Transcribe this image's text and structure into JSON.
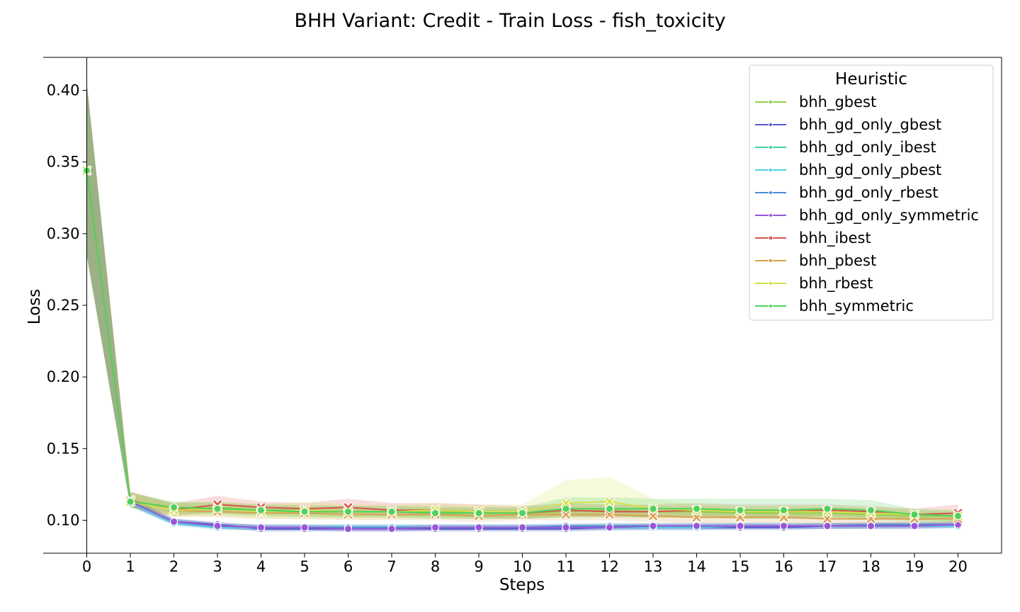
{
  "chart_data": {
    "type": "line",
    "title": "BHH Variant: Credit - Train Loss - fish_toxicity",
    "xlabel": "Steps",
    "ylabel": "Loss",
    "xlim": [
      -1,
      21
    ],
    "ylim": [
      0.077,
      0.423
    ],
    "x": [
      0,
      1,
      2,
      3,
      4,
      5,
      6,
      7,
      8,
      9,
      10,
      11,
      12,
      13,
      14,
      15,
      16,
      17,
      18,
      19,
      20
    ],
    "x_ticks": [
      "0",
      "1",
      "2",
      "3",
      "4",
      "5",
      "6",
      "7",
      "8",
      "9",
      "10",
      "11",
      "12",
      "13",
      "14",
      "15",
      "16",
      "17",
      "18",
      "19",
      "20"
    ],
    "y_ticks": [
      {
        "value": 0.1,
        "label": "0.10"
      },
      {
        "value": 0.15,
        "label": "0.15"
      },
      {
        "value": 0.2,
        "label": "0.20"
      },
      {
        "value": 0.25,
        "label": "0.25"
      },
      {
        "value": 0.3,
        "label": "0.30"
      },
      {
        "value": 0.35,
        "label": "0.35"
      },
      {
        "value": 0.4,
        "label": "0.40"
      }
    ],
    "grid": false,
    "legend": {
      "title": "Heuristic",
      "placement": "top-right"
    },
    "series": [
      {
        "name": "bhh_gbest",
        "color": "#8fd14f",
        "marker": "square",
        "values": [
          0.344,
          0.113,
          0.107,
          0.109,
          0.107,
          0.107,
          0.106,
          0.106,
          0.106,
          0.105,
          0.105,
          0.106,
          0.107,
          0.106,
          0.106,
          0.105,
          0.105,
          0.105,
          0.104,
          0.103,
          0.103
        ],
        "upper": [
          0.405,
          0.119,
          0.112,
          0.113,
          0.111,
          0.111,
          0.11,
          0.11,
          0.11,
          0.109,
          0.109,
          0.111,
          0.111,
          0.11,
          0.11,
          0.109,
          0.109,
          0.109,
          0.108,
          0.107,
          0.106
        ],
        "lower": [
          0.285,
          0.109,
          0.103,
          0.105,
          0.103,
          0.103,
          0.102,
          0.102,
          0.102,
          0.101,
          0.101,
          0.102,
          0.103,
          0.102,
          0.102,
          0.101,
          0.101,
          0.101,
          0.1,
          0.099,
          0.099
        ]
      },
      {
        "name": "bhh_gd_only_gbest",
        "color": "#5a55cc",
        "marker": "circle",
        "values": [
          0.344,
          0.113,
          0.099,
          0.097,
          0.094,
          0.094,
          0.094,
          0.094,
          0.094,
          0.094,
          0.094,
          0.094,
          0.095,
          0.095,
          0.095,
          0.095,
          0.095,
          0.096,
          0.096,
          0.096,
          0.097
        ],
        "upper": [
          0.405,
          0.116,
          0.101,
          0.099,
          0.096,
          0.096,
          0.096,
          0.096,
          0.096,
          0.096,
          0.096,
          0.096,
          0.097,
          0.097,
          0.097,
          0.097,
          0.097,
          0.098,
          0.098,
          0.098,
          0.099
        ],
        "lower": [
          0.285,
          0.11,
          0.097,
          0.095,
          0.092,
          0.092,
          0.092,
          0.092,
          0.092,
          0.092,
          0.092,
          0.092,
          0.093,
          0.093,
          0.093,
          0.093,
          0.093,
          0.094,
          0.094,
          0.094,
          0.095
        ]
      },
      {
        "name": "bhh_gd_only_ibest",
        "color": "#3dd19c",
        "marker": "circle",
        "values": [
          0.344,
          0.113,
          0.099,
          0.096,
          0.095,
          0.095,
          0.095,
          0.095,
          0.095,
          0.095,
          0.095,
          0.095,
          0.096,
          0.096,
          0.096,
          0.096,
          0.096,
          0.096,
          0.096,
          0.097,
          0.097
        ],
        "upper": [
          0.405,
          0.116,
          0.101,
          0.098,
          0.097,
          0.097,
          0.097,
          0.097,
          0.097,
          0.097,
          0.097,
          0.097,
          0.098,
          0.098,
          0.098,
          0.098,
          0.098,
          0.098,
          0.098,
          0.099,
          0.099
        ],
        "lower": [
          0.285,
          0.11,
          0.097,
          0.094,
          0.093,
          0.093,
          0.093,
          0.093,
          0.093,
          0.093,
          0.093,
          0.093,
          0.094,
          0.094,
          0.094,
          0.094,
          0.094,
          0.094,
          0.094,
          0.095,
          0.095
        ]
      },
      {
        "name": "bhh_gd_only_pbest",
        "color": "#4dd0e1",
        "marker": "circle",
        "values": [
          0.344,
          0.112,
          0.098,
          0.095,
          0.095,
          0.095,
          0.095,
          0.095,
          0.095,
          0.095,
          0.095,
          0.095,
          0.095,
          0.095,
          0.095,
          0.096,
          0.096,
          0.096,
          0.096,
          0.096,
          0.096
        ],
        "upper": [
          0.405,
          0.115,
          0.1,
          0.097,
          0.097,
          0.097,
          0.097,
          0.097,
          0.097,
          0.097,
          0.097,
          0.097,
          0.097,
          0.097,
          0.097,
          0.098,
          0.098,
          0.098,
          0.098,
          0.098,
          0.098
        ],
        "lower": [
          0.285,
          0.109,
          0.096,
          0.093,
          0.093,
          0.093,
          0.093,
          0.093,
          0.093,
          0.093,
          0.093,
          0.093,
          0.093,
          0.093,
          0.093,
          0.094,
          0.094,
          0.094,
          0.094,
          0.094,
          0.094
        ]
      },
      {
        "name": "bhh_gd_only_rbest",
        "color": "#4a8fd4",
        "marker": "circle",
        "values": [
          0.344,
          0.113,
          0.099,
          0.096,
          0.095,
          0.095,
          0.095,
          0.095,
          0.095,
          0.095,
          0.095,
          0.096,
          0.096,
          0.096,
          0.096,
          0.096,
          0.096,
          0.096,
          0.097,
          0.097,
          0.097
        ],
        "upper": [
          0.405,
          0.116,
          0.101,
          0.098,
          0.097,
          0.097,
          0.097,
          0.097,
          0.097,
          0.097,
          0.097,
          0.098,
          0.098,
          0.098,
          0.098,
          0.098,
          0.098,
          0.098,
          0.099,
          0.099,
          0.099
        ],
        "lower": [
          0.285,
          0.11,
          0.097,
          0.094,
          0.093,
          0.093,
          0.093,
          0.093,
          0.093,
          0.093,
          0.093,
          0.094,
          0.094,
          0.094,
          0.094,
          0.094,
          0.094,
          0.094,
          0.095,
          0.095,
          0.095
        ]
      },
      {
        "name": "bhh_gd_only_symmetric",
        "color": "#9a55d9",
        "marker": "circle",
        "values": [
          0.344,
          0.113,
          0.099,
          0.096,
          0.095,
          0.095,
          0.094,
          0.094,
          0.095,
          0.095,
          0.095,
          0.095,
          0.095,
          0.096,
          0.096,
          0.096,
          0.096,
          0.096,
          0.096,
          0.096,
          0.097
        ],
        "upper": [
          0.405,
          0.116,
          0.101,
          0.098,
          0.097,
          0.097,
          0.096,
          0.096,
          0.097,
          0.097,
          0.097,
          0.097,
          0.097,
          0.098,
          0.098,
          0.098,
          0.098,
          0.098,
          0.098,
          0.098,
          0.099
        ],
        "lower": [
          0.285,
          0.11,
          0.097,
          0.094,
          0.093,
          0.093,
          0.092,
          0.092,
          0.093,
          0.093,
          0.093,
          0.093,
          0.093,
          0.094,
          0.094,
          0.094,
          0.094,
          0.094,
          0.094,
          0.094,
          0.095
        ]
      },
      {
        "name": "bhh_ibest",
        "color": "#d9534f",
        "marker": "x",
        "values": [
          0.344,
          0.114,
          0.107,
          0.111,
          0.109,
          0.108,
          0.109,
          0.107,
          0.107,
          0.106,
          0.105,
          0.107,
          0.106,
          0.106,
          0.107,
          0.106,
          0.106,
          0.107,
          0.106,
          0.104,
          0.105
        ],
        "upper": [
          0.405,
          0.12,
          0.112,
          0.117,
          0.113,
          0.112,
          0.115,
          0.112,
          0.112,
          0.111,
          0.11,
          0.112,
          0.111,
          0.111,
          0.112,
          0.111,
          0.111,
          0.111,
          0.11,
          0.108,
          0.111
        ],
        "lower": [
          0.285,
          0.109,
          0.103,
          0.106,
          0.105,
          0.104,
          0.104,
          0.103,
          0.103,
          0.102,
          0.101,
          0.103,
          0.102,
          0.102,
          0.103,
          0.102,
          0.102,
          0.103,
          0.102,
          0.1,
          0.101
        ]
      },
      {
        "name": "bhh_pbest",
        "color": "#d9a04f",
        "marker": "x",
        "values": [
          0.344,
          0.114,
          0.107,
          0.106,
          0.105,
          0.105,
          0.104,
          0.104,
          0.104,
          0.103,
          0.104,
          0.104,
          0.104,
          0.103,
          0.102,
          0.102,
          0.102,
          0.101,
          0.101,
          0.101,
          0.101
        ],
        "upper": [
          0.405,
          0.12,
          0.111,
          0.11,
          0.109,
          0.109,
          0.108,
          0.108,
          0.108,
          0.107,
          0.108,
          0.108,
          0.108,
          0.107,
          0.106,
          0.106,
          0.106,
          0.105,
          0.105,
          0.105,
          0.105
        ],
        "lower": [
          0.285,
          0.109,
          0.103,
          0.102,
          0.101,
          0.101,
          0.1,
          0.1,
          0.1,
          0.099,
          0.1,
          0.1,
          0.1,
          0.099,
          0.098,
          0.098,
          0.098,
          0.097,
          0.097,
          0.097,
          0.097
        ]
      },
      {
        "name": "bhh_rbest",
        "color": "#d4e04f",
        "marker": "x",
        "values": [
          0.344,
          0.113,
          0.107,
          0.108,
          0.106,
          0.107,
          0.106,
          0.106,
          0.107,
          0.106,
          0.106,
          0.112,
          0.113,
          0.108,
          0.107,
          0.106,
          0.106,
          0.106,
          0.105,
          0.104,
          0.103
        ],
        "upper": [
          0.405,
          0.119,
          0.112,
          0.113,
          0.111,
          0.113,
          0.111,
          0.111,
          0.112,
          0.111,
          0.111,
          0.128,
          0.13,
          0.115,
          0.111,
          0.11,
          0.11,
          0.11,
          0.109,
          0.108,
          0.107
        ],
        "lower": [
          0.285,
          0.109,
          0.102,
          0.103,
          0.101,
          0.101,
          0.101,
          0.101,
          0.101,
          0.101,
          0.101,
          0.102,
          0.103,
          0.101,
          0.102,
          0.102,
          0.102,
          0.102,
          0.101,
          0.1,
          0.099
        ]
      },
      {
        "name": "bhh_symmetric",
        "color": "#4fd15a",
        "marker": "circle",
        "values": [
          0.344,
          0.113,
          0.109,
          0.108,
          0.107,
          0.106,
          0.106,
          0.106,
          0.105,
          0.105,
          0.105,
          0.108,
          0.108,
          0.108,
          0.108,
          0.107,
          0.107,
          0.108,
          0.107,
          0.104,
          0.103
        ],
        "upper": [
          0.405,
          0.119,
          0.113,
          0.112,
          0.111,
          0.11,
          0.11,
          0.11,
          0.109,
          0.109,
          0.109,
          0.116,
          0.116,
          0.115,
          0.115,
          0.115,
          0.115,
          0.115,
          0.114,
          0.108,
          0.107
        ],
        "lower": [
          0.285,
          0.109,
          0.105,
          0.104,
          0.103,
          0.102,
          0.102,
          0.102,
          0.101,
          0.101,
          0.101,
          0.102,
          0.102,
          0.102,
          0.102,
          0.101,
          0.101,
          0.102,
          0.101,
          0.1,
          0.099
        ]
      }
    ]
  }
}
